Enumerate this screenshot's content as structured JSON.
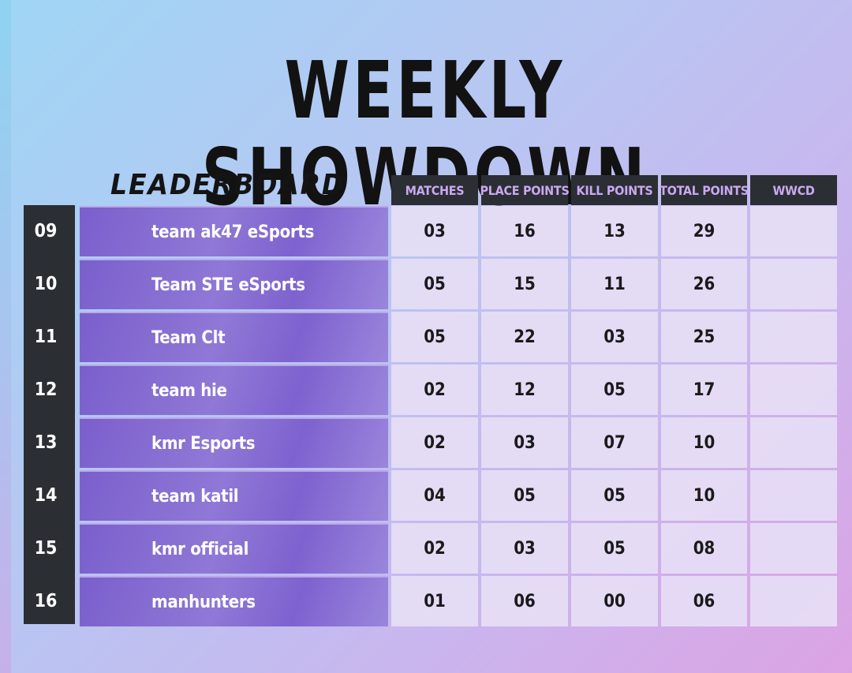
{
  "title": "WEEKLY SHOWDOWN",
  "subtitle": "LEADERBOARD",
  "columns": [
    "MATCHES",
    "PLACE POINTS",
    "KILL POINTS",
    "TOTAL POINTS",
    "WWCD"
  ],
  "rows": [
    {
      "rank": "09",
      "team": "team ak47 eSports",
      "matches": "03",
      "place": "16",
      "kill": "13",
      "total": "29",
      "wwcd": ""
    },
    {
      "rank": "10",
      "team": "Team STE eSports",
      "matches": "05",
      "place": "15",
      "kill": "11",
      "total": "26",
      "wwcd": ""
    },
    {
      "rank": "11",
      "team": "Team Clt",
      "matches": "05",
      "place": "22",
      "kill": "03",
      "total": "25",
      "wwcd": ""
    },
    {
      "rank": "12",
      "team": "team hie",
      "matches": "02",
      "place": "12",
      "kill": "05",
      "total": "17",
      "wwcd": ""
    },
    {
      "rank": "13",
      "team": "kmr Esports",
      "matches": "02",
      "place": "03",
      "kill": "07",
      "total": "10",
      "wwcd": ""
    },
    {
      "rank": "14",
      "team": "team katil",
      "matches": "04",
      "place": "05",
      "kill": "05",
      "total": "10",
      "wwcd": ""
    },
    {
      "rank": "15",
      "team": "kmr official",
      "matches": "02",
      "place": "03",
      "kill": "05",
      "total": "08",
      "wwcd": ""
    },
    {
      "rank": "16",
      "team": "manhunters",
      "matches": "01",
      "place": "06",
      "kill": "00",
      "total": "06",
      "wwcd": ""
    }
  ]
}
